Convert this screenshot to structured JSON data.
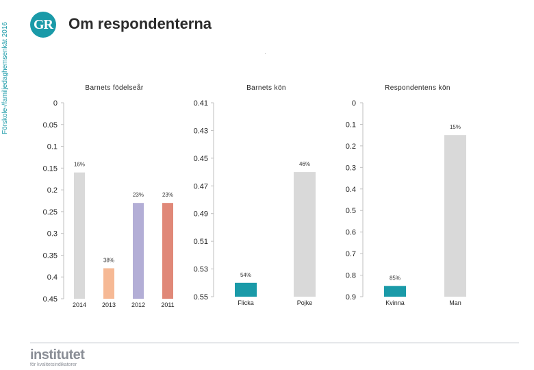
{
  "side_label": "Förskole-/familjedaghemsenkät 2016",
  "logo_text": "GR",
  "title": "Om respondenterna",
  "footer": {
    "brand": "institutet",
    "tagline": "för kvalitetsindikatorer"
  },
  "colors": {
    "teal": "#1a9aa8",
    "gray": "#d9d9d9",
    "peach": "#f6b995",
    "lavender": "#b3aed6",
    "salmon": "#e08878"
  },
  "chart_data": [
    {
      "type": "bar",
      "title": "Barnets födelseår",
      "categories": [
        "2014",
        "2013",
        "2012",
        "2011"
      ],
      "values": [
        0.16,
        0.38,
        0.23,
        0.23
      ],
      "labels": [
        "16%",
        "38%",
        "23%",
        "23%"
      ],
      "colors": [
        "#d9d9d9",
        "#f6b995",
        "#b3aed6",
        "#e08878"
      ],
      "ylim": [
        0,
        0.45
      ],
      "yticks": [
        "0",
        "0.05",
        "0.1",
        "0.15",
        "0.2",
        "0.25",
        "0.3",
        "0.35",
        "0.4",
        "0.45"
      ],
      "inverted": true
    },
    {
      "type": "bar",
      "title": "Barnets kön",
      "categories": [
        "Flicka",
        "Pojke"
      ],
      "values": [
        0.54,
        0.46
      ],
      "labels": [
        "54%",
        "46%"
      ],
      "colors": [
        "#1a9aa8",
        "#d9d9d9"
      ],
      "ylim": [
        0.41,
        0.55
      ],
      "yticks": [
        "0.41",
        "0.43",
        "0.45",
        "0.47",
        "0.49",
        "0.51",
        "0.53",
        "0.55"
      ],
      "inverted": true
    },
    {
      "type": "bar",
      "title": "Respondentens kön",
      "categories": [
        "Kvinna",
        "Man"
      ],
      "values": [
        0.85,
        0.15
      ],
      "labels": [
        "85%",
        "15%"
      ],
      "colors": [
        "#1a9aa8",
        "#d9d9d9"
      ],
      "ylim": [
        0,
        0.9
      ],
      "yticks": [
        "0",
        "0.1",
        "0.2",
        "0.3",
        "0.4",
        "0.5",
        "0.6",
        "0.7",
        "0.8",
        "0.9"
      ],
      "inverted": true
    }
  ]
}
